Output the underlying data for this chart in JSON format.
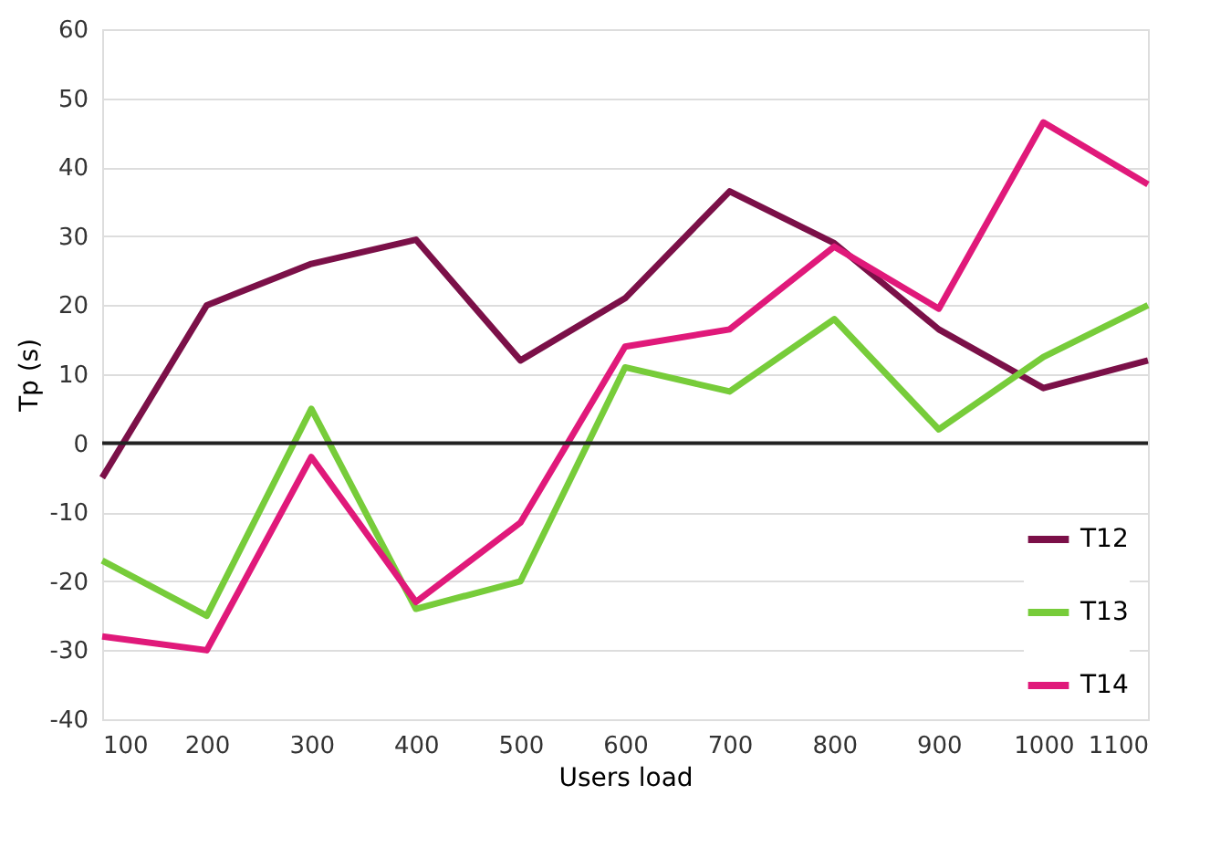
{
  "chart_data": {
    "type": "line",
    "xlabel": "Users load",
    "ylabel": "Tp (s)",
    "x": [
      100,
      200,
      300,
      400,
      500,
      600,
      700,
      800,
      900,
      1000,
      1100
    ],
    "xlim": [
      100,
      1100
    ],
    "xticks": [
      100,
      200,
      300,
      400,
      500,
      600,
      700,
      800,
      900,
      1000,
      1100
    ],
    "ylim": [
      -40,
      60
    ],
    "yticks": [
      -40,
      -30,
      -20,
      -10,
      0,
      10,
      20,
      30,
      40,
      50,
      60
    ],
    "grid": "y",
    "legend": "bottom right",
    "marker": "none",
    "line_style": "solid",
    "ref_lines": [
      {
        "axis": "y",
        "value": 0,
        "color": "#222222"
      }
    ],
    "series": [
      {
        "name": "T12",
        "color": "#7b1048",
        "values": [
          -5,
          20,
          26,
          29.5,
          12,
          21,
          36.5,
          29,
          16.5,
          8,
          12
        ]
      },
      {
        "name": "T13",
        "color": "#77cc3a",
        "values": [
          -17,
          -25,
          5,
          -24,
          -20,
          11,
          7.5,
          18,
          2,
          12.5,
          20
        ]
      },
      {
        "name": "T14",
        "color": "#e0197a",
        "values": [
          -28,
          -30,
          -2,
          -23,
          -11.5,
          14,
          16.5,
          28.5,
          19.5,
          46.5,
          37.5
        ]
      }
    ]
  }
}
